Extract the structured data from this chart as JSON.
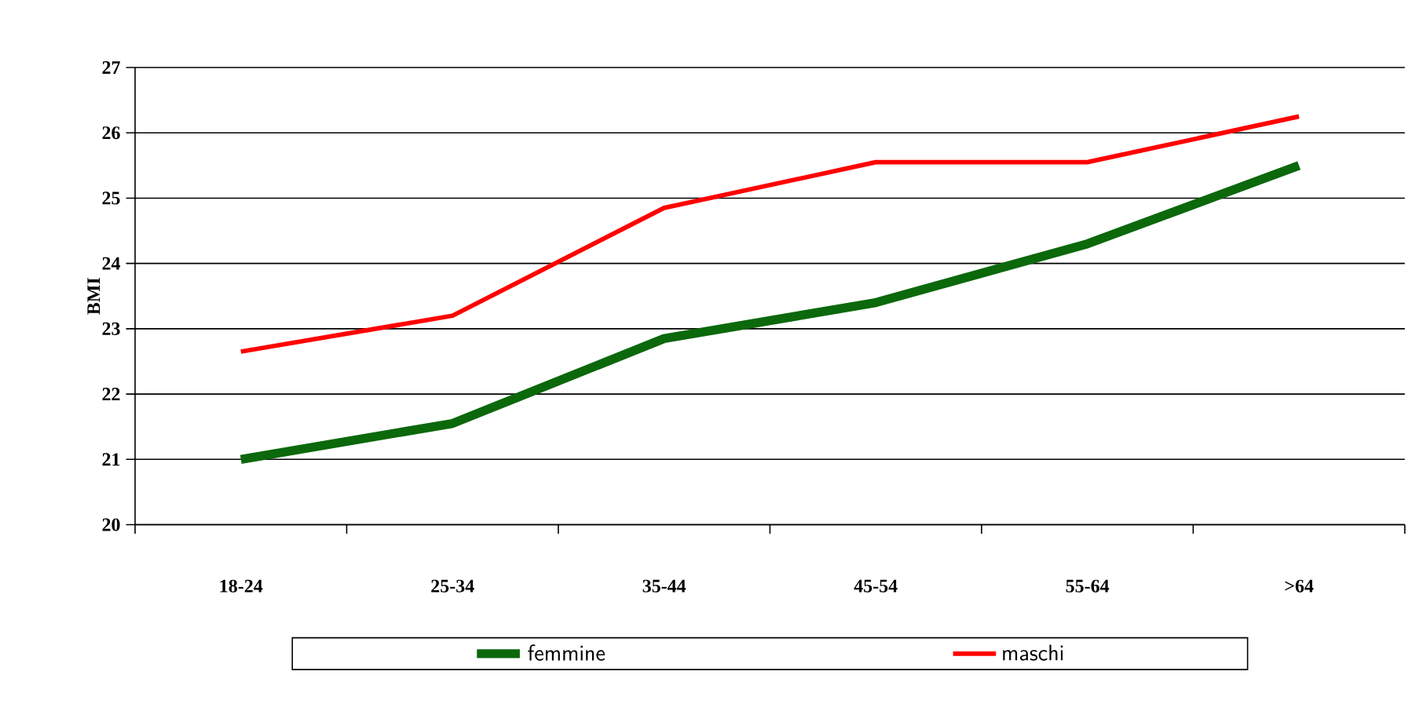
{
  "chart_data": {
    "type": "line",
    "ylabel": "BMI",
    "categories": [
      "18-24",
      "25-34",
      "35-44",
      "45-54",
      "55-64",
      ">64"
    ],
    "series": [
      {
        "name": "femmine",
        "color": "#0b680b",
        "values": [
          21.0,
          21.55,
          22.85,
          23.4,
          24.3,
          25.5
        ]
      },
      {
        "name": "maschi",
        "color": "#ff0000",
        "values": [
          22.65,
          23.2,
          24.85,
          25.55,
          25.55,
          26.25
        ]
      }
    ],
    "ylim": [
      20,
      27
    ],
    "yticks": [
      20,
      21,
      22,
      23,
      24,
      25,
      26,
      27
    ],
    "grid": "y",
    "legend": "bottom"
  }
}
